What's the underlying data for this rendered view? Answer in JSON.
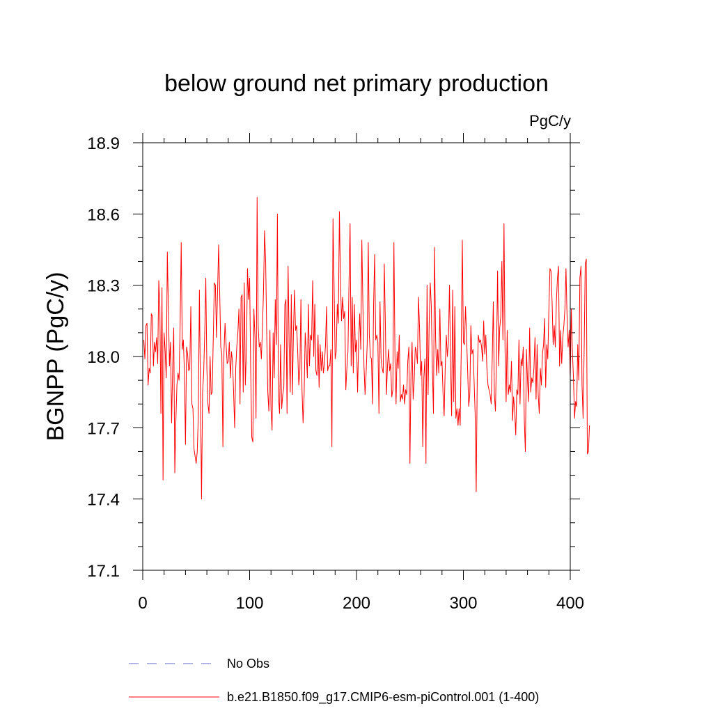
{
  "chart_data": {
    "type": "line",
    "title": "below ground net primary production",
    "units_label": "PgC/y",
    "ylabel": "BGNPP  (PgC/y)",
    "xlabel": "",
    "xlim": [
      0,
      400
    ],
    "ylim": [
      17.1,
      18.9
    ],
    "xticks": [
      0,
      100,
      200,
      300,
      400
    ],
    "yticks": [
      17.1,
      17.4,
      17.7,
      18.0,
      18.3,
      18.6,
      18.9
    ],
    "ytick_labels": [
      "17.1",
      "17.4",
      "17.7",
      "18.0",
      "18.3",
      "18.6",
      "18.9"
    ],
    "legend": [
      {
        "label": "No Obs",
        "color": "#6666cc",
        "style": "dashed"
      },
      {
        "label": "b.e21.B1850.f09_g17.CMIP6-esm-piControl.001 (1-400)",
        "color": "#ff0000",
        "style": "solid"
      }
    ],
    "series": [
      {
        "name": "b.e21.B1850.f09_g17.CMIP6-esm-piControl.001 (1-400)",
        "color": "#ff0000",
        "x_start": 1,
        "x_step": 1,
        "values": [
          18.07,
          17.99,
          18.13,
          18.14,
          17.88,
          17.95,
          17.93,
          18.18,
          18.17,
          17.96,
          18.06,
          18.02,
          18.08,
          17.97,
          18.32,
          18.21,
          17.76,
          18.29,
          17.48,
          18.1,
          18.02,
          17.91,
          18.44,
          18.2,
          17.96,
          18.06,
          17.72,
          17.95,
          18.12,
          17.51,
          17.73,
          17.88,
          17.93,
          17.9,
          18.14,
          18.48,
          18.03,
          18.07,
          17.93,
          17.63,
          18.04,
          18.01,
          17.94,
          17.95,
          18.21,
          17.8,
          17.78,
          17.61,
          17.58,
          17.55,
          17.6,
          17.75,
          18.28,
          17.85,
          17.4,
          17.85,
          17.93,
          18.1,
          18.33,
          17.95,
          17.8,
          17.76,
          18.0,
          17.84,
          17.85,
          18.08,
          18.31,
          18.3,
          18.08,
          18.27,
          18.47,
          18.27,
          18.04,
          18.01,
          17.62,
          18.02,
          18.14,
          18.05,
          17.97,
          17.98,
          18.06,
          17.91,
          18.02,
          17.98,
          17.85,
          17.7,
          17.95,
          18.04,
          18.1,
          18.2,
          17.8,
          18.25,
          18.26,
          17.85,
          18.31,
          17.88,
          18.02,
          18.37,
          18.24,
          18.33,
          17.95,
          17.66,
          17.64,
          18.2,
          18.08,
          17.74,
          18.67,
          18.13,
          18.04,
          18.06,
          17.99,
          18.12,
          18.28,
          18.53,
          18.4,
          18.1,
          17.85,
          17.77,
          18.11,
          17.78,
          17.69,
          18.1,
          17.91,
          18.24,
          18.05,
          18.6,
          17.83,
          17.76,
          18.05,
          17.78,
          17.84,
          17.87,
          18.22,
          18.24,
          17.76,
          18.38,
          18.05,
          17.85,
          18.26,
          17.84,
          18.1,
          18.28,
          18.11,
          18.13,
          18.02,
          17.88,
          17.94,
          18.24,
          17.86,
          17.72,
          17.84,
          18.1,
          18.02,
          17.91,
          18.22,
          17.96,
          18.09,
          18.07,
          18.32,
          18.0,
          18.22,
          17.94,
          17.92,
          18.09,
          17.87,
          18.05,
          17.94,
          18.02,
          17.93,
          17.97,
          18.05,
          18.21,
          17.94,
          17.96,
          17.96,
          18.03,
          17.62,
          18.58,
          18.31,
          17.99,
          18.02,
          18.22,
          18.14,
          18.61,
          18.32,
          18.15,
          18.25,
          18.16,
          18.19,
          17.86,
          17.95,
          18.02,
          18.31,
          18.56,
          17.96,
          18.25,
          17.93,
          18.22,
          18.02,
          18.07,
          17.85,
          18.06,
          18.18,
          18.03,
          18.49,
          18.21,
          17.96,
          17.84,
          17.93,
          18.05,
          18.48,
          18.09,
          18.0,
          17.99,
          17.8,
          18.22,
          18.43,
          18.07,
          18.09,
          18.06,
          17.76,
          18.23,
          17.99,
          17.95,
          17.93,
          18.39,
          18.14,
          17.84,
          17.96,
          18.03,
          17.94,
          17.97,
          17.83,
          17.86,
          18.48,
          18.0,
          17.8,
          18.02,
          17.95,
          18.09,
          17.81,
          17.84,
          17.82,
          17.88,
          17.8,
          17.86,
          17.84,
          17.98,
          18.04,
          17.55,
          17.93,
          18.06,
          17.82,
          17.9,
          18.04,
          18.02,
          17.97,
          18.25,
          18.12,
          17.92,
          17.98,
          17.62,
          17.91,
          17.99,
          17.55,
          18.3,
          17.84,
          18.14,
          18.31,
          18.21,
          17.95,
          17.76,
          18.46,
          18.08,
          17.92,
          18.03,
          17.93,
          18.2,
          17.96,
          17.98,
          17.84,
          17.75,
          17.95,
          18.09,
          18.0,
          18.06,
          18.3,
          17.97,
          17.75,
          18.28,
          17.81,
          18.21,
          17.74,
          17.78,
          17.71,
          17.78,
          17.71,
          18.03,
          18.49,
          18.06,
          18.05,
          18.21,
          18.08,
          17.94,
          17.79,
          17.84,
          18.13,
          18.01,
          18.03,
          17.9,
          17.76,
          17.43,
          17.92,
          18.09,
          18.06,
          18.07,
          18.04,
          17.98,
          18.15,
          18.01,
          18.09,
          17.95,
          17.88,
          17.86,
          17.84,
          17.8,
          17.99,
          18.23,
          17.84,
          17.77,
          18.01,
          18.36,
          17.96,
          18.12,
          18.17,
          18.4,
          18.07,
          18.56,
          18.02,
          17.81,
          18.11,
          17.84,
          17.88,
          17.85,
          17.98,
          17.73,
          17.83,
          17.77,
          17.67,
          17.86,
          17.84,
          18.07,
          17.8,
          17.99,
          17.96,
          18.04,
          17.73,
          17.6,
          18.03,
          17.9,
          17.81,
          18.12,
          17.85,
          17.91,
          17.89,
          17.95,
          18.08,
          17.82,
          18.05,
          17.84,
          17.76,
          17.95,
          17.88,
          18.01,
          18.05,
          18.16,
          17.87,
          18.05,
          17.99,
          18.2,
          18.37,
          18.36,
          18.23,
          18.05,
          18.13,
          18.04,
          18.23,
          18.33,
          18.38,
          17.96,
          18.11,
          17.97,
          18.08,
          18.13,
          18.2,
          18.37,
          18.17,
          18.04,
          18.11,
          17.91,
          18.2,
          18.02,
          17.91,
          17.74,
          17.81,
          17.79,
          18.05,
          17.9,
          18.33,
          18.38,
          17.88,
          17.74,
          18.03,
          18.39,
          18.41,
          17.59,
          17.6,
          17.71
        ]
      }
    ]
  }
}
